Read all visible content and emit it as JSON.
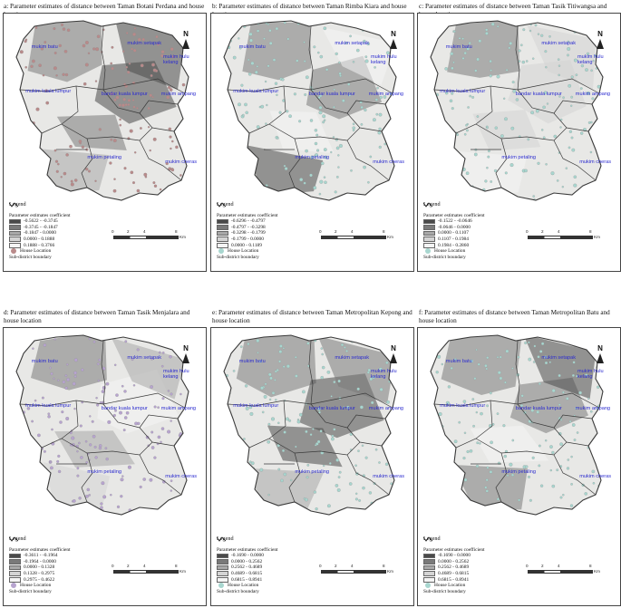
{
  "map_labels": {
    "batu": "mukim batu",
    "setapak": "mukim setapak",
    "hulu_kelang": "mukim hulu kelang",
    "kuala_lumpur": "mukim kuala lumpur",
    "bandar": "bandar kuala lumpur",
    "ampang": "mukim ampang",
    "petaling": "mukim petaling",
    "cheras": "mukim cheras"
  },
  "legend_common": {
    "title": "Legend",
    "subtitle": "Parameter estimates coefficient",
    "house_location": "House Location",
    "boundary": "Sub-district boundary",
    "north": "N",
    "scale_ticks": [
      "0",
      "2",
      "4",
      "8"
    ],
    "scale_unit": "Km"
  },
  "colors": {
    "boundary": "#3a3a3a",
    "region_fill": "#e8e8e6",
    "label": "#2b2bcf",
    "dot_brown": "#b98a8a",
    "dot_teal": "#a8d6cf",
    "dot_purple": "#b7a4cf"
  },
  "panels": [
    {
      "caption": "a: Parameter estimates of distance between Taman Botani Perdana and house location",
      "dot_color": "#b98a8a",
      "classes": [
        {
          "range": "-0.5622 - -0.3745",
          "color": "#4a4a4a"
        },
        {
          "range": "-0.3745 - -0.1847",
          "color": "#7a7a7a"
        },
        {
          "range": "-0.1847 - 0.0000",
          "color": "#a8a8a8"
        },
        {
          "range": "0.0000 - 0.1888",
          "color": "#d4d4d4"
        },
        {
          "range": "0.1888 - 0.3766",
          "color": "#f4f4f4"
        }
      ]
    },
    {
      "caption": "b: Parameter estimates of distance between Taman Rimba Kiara and house location",
      "dot_color": "#a8d6cf",
      "classes": [
        {
          "range": "-0.6296 - -0.4797",
          "color": "#4a4a4a"
        },
        {
          "range": "-0.4797 - -0.3298",
          "color": "#7a7a7a"
        },
        {
          "range": "-0.3298 - -0.1799",
          "color": "#a8a8a8"
        },
        {
          "range": "-0.1799 - 0.0000",
          "color": "#d4d4d4"
        },
        {
          "range": "0.0000 - 0.1189",
          "color": "#f4f4f4"
        }
      ]
    },
    {
      "caption": "c: Parameter estimates of distance between Taman Tasik Titiwangsa and house location",
      "dot_color": "#a8d6cf",
      "classes": [
        {
          "range": "-0.1522 - -0.0646",
          "color": "#4a4a4a"
        },
        {
          "range": "-0.0646 - 0.0000",
          "color": "#7a7a7a"
        },
        {
          "range": "0.0000 - 0.1107",
          "color": "#a8a8a8"
        },
        {
          "range": "0.1107 - 0.1984",
          "color": "#d4d4d4"
        },
        {
          "range": "0.1984 - 0.2860",
          "color": "#f4f4f4"
        }
      ]
    },
    {
      "caption": "d: Parameter estimates of distance between Taman Tasik Menjalara and house location",
      "dot_color": "#b7a4cf",
      "classes": [
        {
          "range": "-0.3611 - -0.1964",
          "color": "#4a4a4a"
        },
        {
          "range": "-0.1964 - 0.0000",
          "color": "#7a7a7a"
        },
        {
          "range": "0.0000 - 0.1328",
          "color": "#a8a8a8"
        },
        {
          "range": "0.1328 - 0.2975",
          "color": "#d4d4d4"
        },
        {
          "range": "0.2975 - 0.4622",
          "color": "#f4f4f4"
        }
      ]
    },
    {
      "caption": "e: Parameter estimates of distance between Taman Metropolitan Kepong and house location",
      "dot_color": "#a8d6cf",
      "classes": [
        {
          "range": "-0.1690 - 0.0000",
          "color": "#4a4a4a"
        },
        {
          "range": "0.0000 - 0.2562",
          "color": "#7a7a7a"
        },
        {
          "range": "0.2562 - 0.4689",
          "color": "#a8a8a8"
        },
        {
          "range": "0.4689 - 0.6815",
          "color": "#d4d4d4"
        },
        {
          "range": "0.6815 - 0.8941",
          "color": "#f4f4f4"
        }
      ]
    },
    {
      "caption": "f: Parameter estimates of distance between Taman Metropolitan Batu and house location",
      "dot_color": "#a8d6cf",
      "classes": [
        {
          "range": "-0.1690 - 0.0000",
          "color": "#4a4a4a"
        },
        {
          "range": "0.0000 - 0.2562",
          "color": "#7a7a7a"
        },
        {
          "range": "0.2562 - 0.4689",
          "color": "#a8a8a8"
        },
        {
          "range": "0.4689 - 0.6815",
          "color": "#d4d4d4"
        },
        {
          "range": "0.6815 - 0.8941",
          "color": "#f4f4f4"
        }
      ]
    }
  ]
}
